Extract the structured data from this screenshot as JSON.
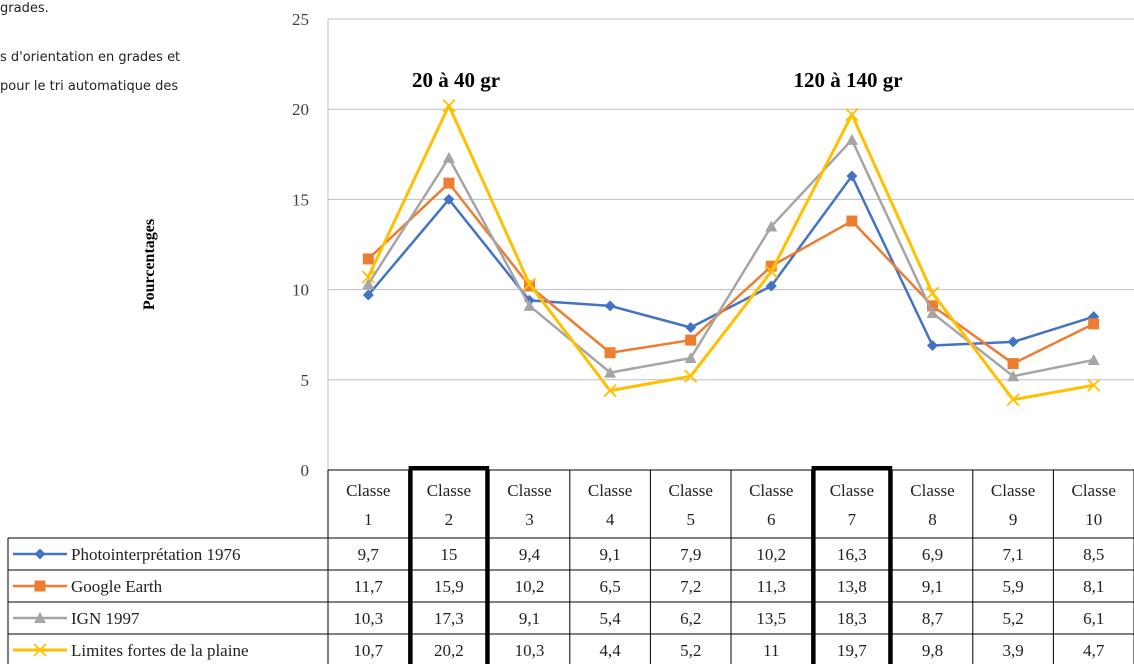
{
  "side_text": {
    "line1": "grades.",
    "line2": "s d'orientation en grades et",
    "line3": "pour le tri automatique des"
  },
  "chart_data": {
    "type": "line",
    "ylabel": "Pourcentages",
    "ylim": [
      0,
      25
    ],
    "yticks": [
      0,
      5,
      10,
      15,
      20,
      25
    ],
    "grid": true,
    "categories": [
      [
        "Classe",
        "1"
      ],
      [
        "Classe",
        "2"
      ],
      [
        "Classe",
        "3"
      ],
      [
        "Classe",
        "4"
      ],
      [
        "Classe",
        "5"
      ],
      [
        "Classe",
        "6"
      ],
      [
        "Classe",
        "7"
      ],
      [
        "Classe",
        "8"
      ],
      [
        "Classe",
        "9"
      ],
      [
        "Classe",
        "10"
      ]
    ],
    "annotations": [
      "20 à 40 gr",
      "120 à 140 gr"
    ],
    "highlighted_columns": [
      1,
      6
    ],
    "series": [
      {
        "name": "Photointerprétation 1976",
        "color": "#4472C4",
        "marker": "diamond",
        "values": [
          9.7,
          15,
          9.4,
          9.1,
          7.9,
          10.2,
          16.3,
          6.9,
          7.1,
          8.5
        ],
        "labels": [
          "9,7",
          "15",
          "9,4",
          "9,1",
          "7,9",
          "10,2",
          "16,3",
          "6,9",
          "7,1",
          "8,5"
        ]
      },
      {
        "name": "Google Earth",
        "color": "#ED7D31",
        "marker": "square",
        "values": [
          11.7,
          15.9,
          10.2,
          6.5,
          7.2,
          11.3,
          13.8,
          9.1,
          5.9,
          8.1
        ],
        "labels": [
          "11,7",
          "15,9",
          "10,2",
          "6,5",
          "7,2",
          "11,3",
          "13,8",
          "9,1",
          "5,9",
          "8,1"
        ]
      },
      {
        "name": "IGN 1997",
        "color": "#A5A5A5",
        "marker": "triangle",
        "values": [
          10.3,
          17.3,
          9.1,
          5.4,
          6.2,
          13.5,
          18.3,
          8.7,
          5.2,
          6.1
        ],
        "labels": [
          "10,3",
          "17,3",
          "9,1",
          "5,4",
          "6,2",
          "13,5",
          "18,3",
          "8,7",
          "5,2",
          "6,1"
        ]
      },
      {
        "name": "Limites fortes de la plaine",
        "color": "#FFC000",
        "marker": "x",
        "values": [
          10.7,
          20.2,
          10.3,
          4.4,
          5.2,
          11,
          19.7,
          9.8,
          3.9,
          4.7
        ],
        "labels": [
          "10,7",
          "20,2",
          "10,3",
          "4,4",
          "5,2",
          "11",
          "19,7",
          "9,8",
          "3,9",
          "4,7"
        ]
      }
    ]
  }
}
